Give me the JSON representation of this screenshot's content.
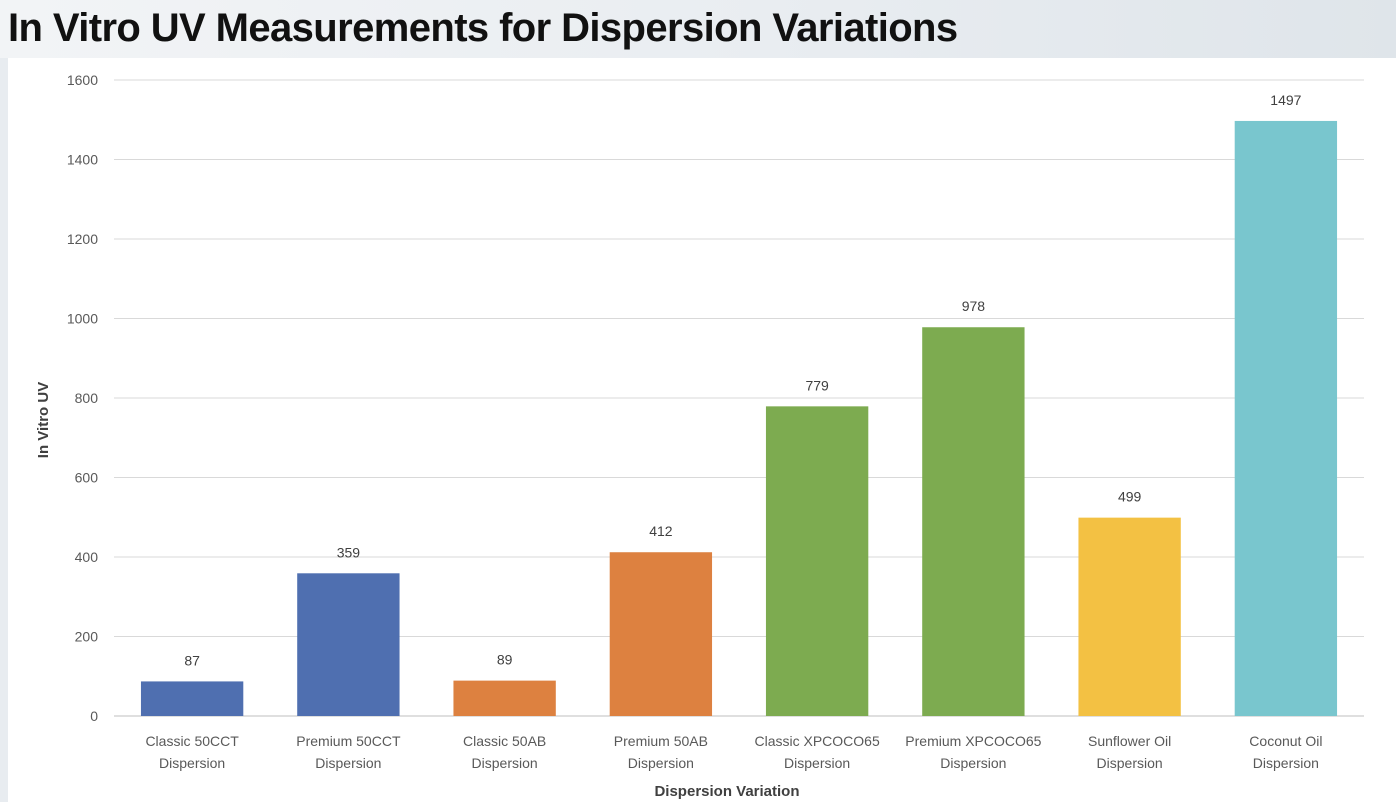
{
  "page": {
    "title": "In Vitro UV Measurements for Dispersion Variations"
  },
  "chart_data": {
    "type": "bar",
    "title": "In Vitro UV Measurements for Dispersion Variations",
    "xlabel": "Dispersion Variation",
    "ylabel": "In Vitro UV",
    "ylim": [
      0,
      1600
    ],
    "yticks": [
      0,
      200,
      400,
      600,
      800,
      1000,
      1200,
      1400,
      1600
    ],
    "grid": true,
    "legend": "none",
    "categories": [
      [
        "Classic 50CCT",
        "Dispersion"
      ],
      [
        "Premium 50CCT",
        "Dispersion"
      ],
      [
        "Classic 50AB",
        "Dispersion"
      ],
      [
        "Premium 50AB",
        "Dispersion"
      ],
      [
        "Classic XPCOCO65",
        "Dispersion"
      ],
      [
        "Premium XPCOCO65",
        "Dispersion"
      ],
      [
        "Sunflower Oil",
        "Dispersion"
      ],
      [
        "Coconut Oil",
        "Dispersion"
      ]
    ],
    "values": [
      87,
      359,
      89,
      412,
      779,
      978,
      499,
      1497
    ],
    "colors": [
      "#4f6fb0",
      "#4f6fb0",
      "#dd8140",
      "#dd8140",
      "#7dab50",
      "#7dab50",
      "#f3c143",
      "#79c6ce"
    ],
    "grid_color": "#d9d9d9",
    "axis_color": "#bfbfbf"
  }
}
